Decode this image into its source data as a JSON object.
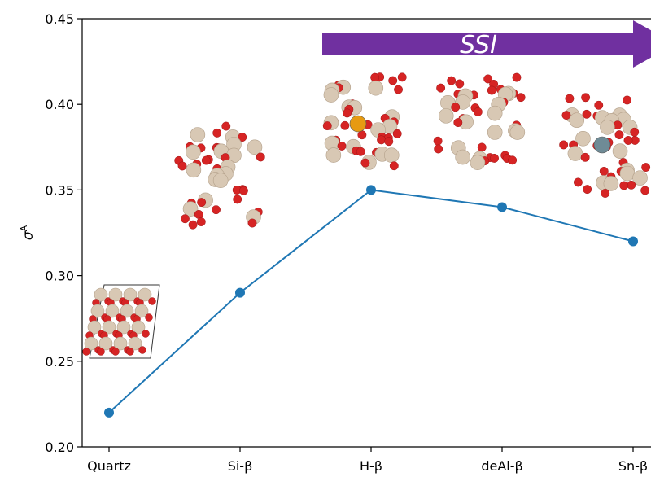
{
  "chart_data": {
    "type": "line",
    "title": "",
    "xlabel": "",
    "ylabel": "σ",
    "ylabel_superscript": "A",
    "categories": [
      "Quartz",
      "Si-β",
      "H-β",
      "deAl-β",
      "Sn-β"
    ],
    "series": [
      {
        "values": [
          0.22,
          0.29,
          0.35,
          0.34,
          0.32
        ],
        "color": "#1f77b4"
      }
    ],
    "ylim": [
      0.2,
      0.45
    ],
    "yticks": [
      "0.20",
      "0.25",
      "0.30",
      "0.35",
      "0.40",
      "0.45"
    ],
    "grid": false,
    "annotations": [
      {
        "type": "arrow",
        "text": "SSI",
        "color": "#7030a0",
        "from_category": "H-β",
        "to_category": "Sn-β"
      }
    ],
    "insets": [
      {
        "category": "Quartz",
        "depicts": "quartz crystal structure",
        "dopant": "none"
      },
      {
        "category": "Si-β",
        "depicts": "zeolite cluster",
        "dopant": "none"
      },
      {
        "category": "H-β",
        "depicts": "zeolite cluster",
        "dopant": "Al",
        "dopant_color": "#e69a12"
      },
      {
        "category": "deAl-β",
        "depicts": "zeolite cluster",
        "dopant": "none"
      },
      {
        "category": "Sn-β",
        "depicts": "zeolite cluster",
        "dopant": "Sn",
        "dopant_color": "#6f8b96"
      }
    ],
    "atom_colors": {
      "O": "#d62424",
      "Si": "#d8c8b4"
    }
  }
}
